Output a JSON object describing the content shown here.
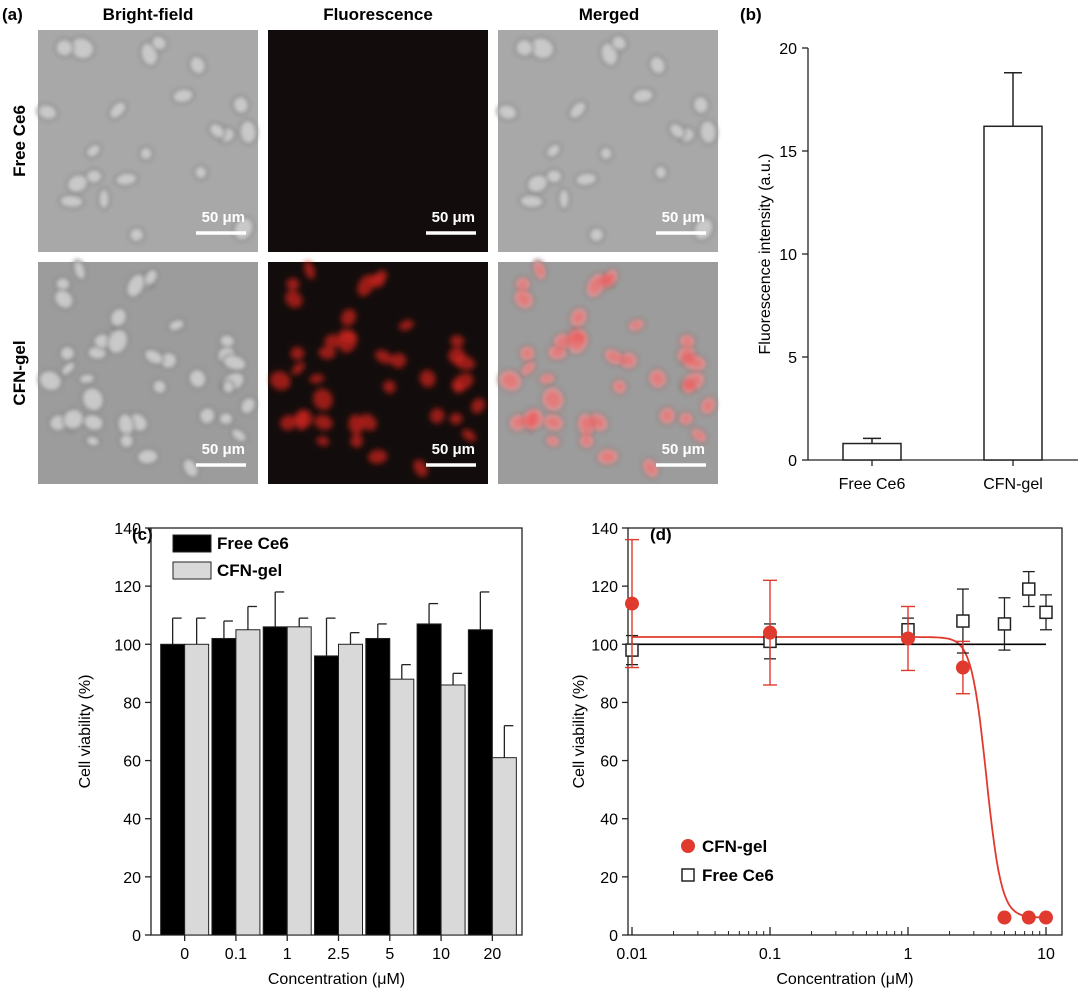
{
  "panel_a": {
    "label": "(a)",
    "column_headers": [
      "Bright-field",
      "Fluorescence",
      "Merged"
    ],
    "row_labels": [
      "Free Ce6",
      "CFN-gel"
    ],
    "scale_bar": "50 μm"
  },
  "chart_data": [
    {
      "panel": "(b)",
      "type": "bar",
      "categories": [
        "Free Ce6",
        "CFN-gel"
      ],
      "values": [
        0.8,
        16.2
      ],
      "errors": [
        0.25,
        2.6
      ],
      "xlabel": "",
      "ylabel": "Fluorescence intensity (a.u.)",
      "ylim": [
        0,
        20
      ],
      "yticks": [
        0,
        5,
        10,
        15,
        20
      ],
      "grid": false
    },
    {
      "panel": "(c)",
      "type": "bar",
      "categories": [
        "0",
        "0.1",
        "1",
        "2.5",
        "5",
        "10",
        "20"
      ],
      "series": [
        {
          "name": "Free Ce6",
          "color": "#000000",
          "values": [
            100,
            102,
            106,
            96,
            102,
            107,
            105
          ],
          "errors": [
            9,
            6,
            12,
            13,
            5,
            7,
            13
          ]
        },
        {
          "name": "CFN-gel",
          "color": "#d9d9d9",
          "values": [
            100,
            105,
            106,
            100,
            88,
            86,
            61
          ],
          "errors": [
            9,
            8,
            3,
            4,
            5,
            4,
            11
          ]
        }
      ],
      "xlabel": "Concentration (μM)",
      "ylabel": "Cell viability (%)",
      "ylim": [
        0,
        140
      ],
      "yticks": [
        0,
        20,
        40,
        60,
        80,
        100,
        120,
        140
      ],
      "legend": "top-left",
      "grid": false
    },
    {
      "panel": "(d)",
      "type": "scatter",
      "xscale": "log",
      "xlim": [
        0.01,
        10
      ],
      "xticks": [
        0.01,
        0.1,
        1,
        10
      ],
      "xtick_labels": [
        "0.01",
        "0.1",
        "1",
        "10"
      ],
      "ylim": [
        0,
        140
      ],
      "yticks": [
        0,
        20,
        40,
        60,
        80,
        100,
        120,
        140
      ],
      "xlabel": "Concentration (μM)",
      "ylabel": "Cell viability (%)",
      "legend": "bottom-left",
      "grid": false,
      "series": [
        {
          "name": "CFN-gel",
          "color": "#e03a2f",
          "marker": "filled-circle",
          "x": [
            0.01,
            0.1,
            1,
            2.5,
            5,
            7.5,
            10
          ],
          "y": [
            114,
            104,
            102,
            92,
            6,
            6,
            6
          ],
          "errors": [
            22,
            18,
            11,
            9,
            0,
            0,
            0
          ],
          "fit": {
            "top": 102.5,
            "bottom": 6,
            "ic50": 3.7,
            "hill": 8
          }
        },
        {
          "name": "Free Ce6",
          "color": "#000000",
          "marker": "open-square",
          "x": [
            0.01,
            0.1,
            1,
            2.5,
            5,
            7.5,
            10
          ],
          "y": [
            98,
            101,
            105,
            108,
            107,
            119,
            111
          ],
          "errors": [
            5,
            6,
            4,
            11,
            9,
            6,
            6
          ],
          "fit": {
            "constant": 100
          }
        }
      ]
    }
  ]
}
